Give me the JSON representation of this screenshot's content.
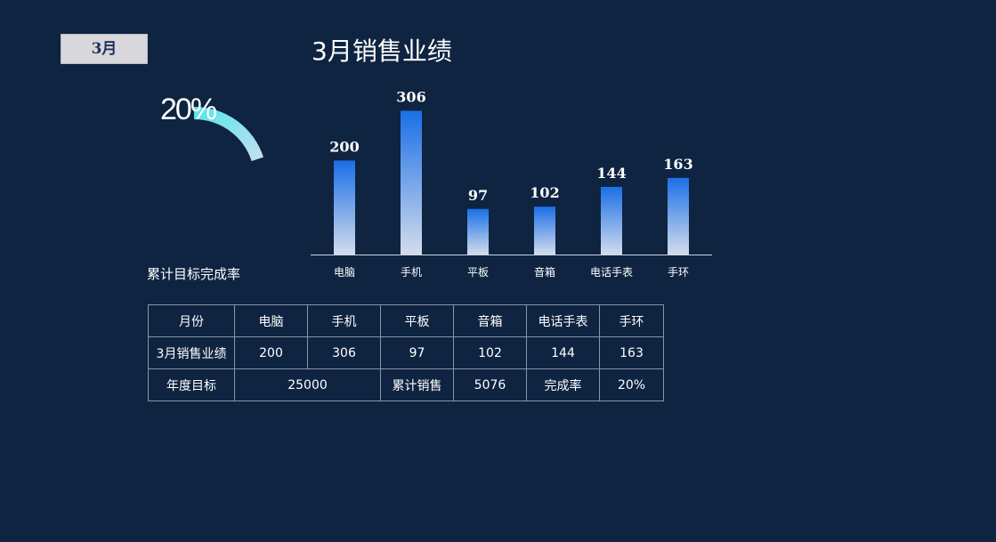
{
  "month_button": "3月",
  "title": "3月销售业绩",
  "gauge": {
    "value_label": "20%",
    "value": 0.2,
    "label": "累计目标完成率"
  },
  "chart_data": {
    "type": "bar",
    "title": "3月销售业绩",
    "categories": [
      "电脑",
      "手机",
      "平板",
      "音箱",
      "电话手表",
      "手环"
    ],
    "values": [
      200,
      306,
      97,
      102,
      144,
      163
    ],
    "xlabel": "",
    "ylabel": "",
    "grid": false
  },
  "table": {
    "rows": [
      [
        {
          "text": "月份"
        },
        {
          "text": "电脑"
        },
        {
          "text": "手机"
        },
        {
          "text": "平板"
        },
        {
          "text": "音箱"
        },
        {
          "text": "电话手表"
        },
        {
          "text": "手环"
        }
      ],
      [
        {
          "text": "3月销售业绩"
        },
        {
          "text": "200"
        },
        {
          "text": "306"
        },
        {
          "text": "97"
        },
        {
          "text": "102"
        },
        {
          "text": "144"
        },
        {
          "text": "163"
        }
      ],
      [
        {
          "text": "年度目标"
        },
        {
          "text": "25000",
          "span": 2
        },
        {
          "text": "累计销售"
        },
        {
          "text": "5076"
        },
        {
          "text": "完成率"
        },
        {
          "text": "20%"
        }
      ]
    ]
  },
  "colors": {
    "background": "#0e2441",
    "bar_top": "#1a6fe6",
    "bar_bottom": "#d3dcec",
    "gauge_start": "#4fe6ea",
    "gauge_end": "#c7dff1"
  }
}
